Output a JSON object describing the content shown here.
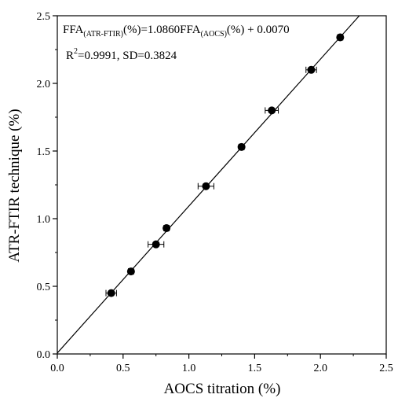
{
  "chart_data": {
    "type": "scatter",
    "xlabel": "AOCS titration (%)",
    "ylabel": "ATR-FTIR technique (%)",
    "xlim": [
      0.0,
      2.5
    ],
    "ylim": [
      0.0,
      2.5
    ],
    "x_ticks": [
      "0.0",
      "0.5",
      "1.0",
      "1.5",
      "2.0",
      "2.5"
    ],
    "y_ticks": [
      "0.0",
      "0.5",
      "1.0",
      "1.5",
      "2.0",
      "2.5"
    ],
    "grid": false,
    "series": [
      {
        "marker": "filled-circle",
        "color": "#000000",
        "points": [
          {
            "x": 0.41,
            "y": 0.45,
            "xerr": 0.04
          },
          {
            "x": 0.56,
            "y": 0.61,
            "xerr": 0.02
          },
          {
            "x": 0.75,
            "y": 0.81,
            "xerr": 0.06
          },
          {
            "x": 0.83,
            "y": 0.93,
            "xerr": 0.02
          },
          {
            "x": 1.13,
            "y": 1.24,
            "xerr": 0.06
          },
          {
            "x": 1.4,
            "y": 1.53,
            "xerr": 0.02
          },
          {
            "x": 1.63,
            "y": 1.8,
            "xerr": 0.05
          },
          {
            "x": 1.93,
            "y": 2.1,
            "xerr": 0.04
          },
          {
            "x": 2.15,
            "y": 2.34,
            "xerr": 0.02
          }
        ]
      }
    ],
    "fit_line": {
      "slope": 1.086,
      "intercept": 0.007,
      "x_range": [
        0.0,
        2.5
      ]
    },
    "annotations": {
      "equation": {
        "lhs": "FFA",
        "lhs_sub": "(ATR-FTIR)",
        "mid": "(%)=1.0860FFA",
        "mid_sub": "(AOCS)",
        "rhs": "(%) + 0.0070"
      },
      "stats": {
        "r_prefix": "R",
        "r_sup": "2",
        "r_rest": "=0.9991, SD=0.3824"
      }
    }
  }
}
